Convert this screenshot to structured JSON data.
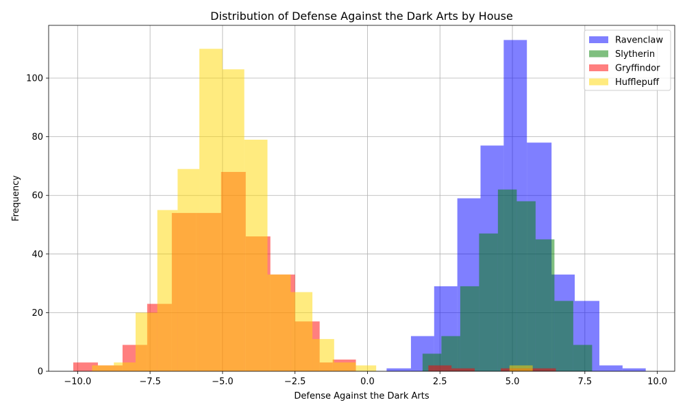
{
  "chart_data": {
    "type": "bar",
    "subtype": "overlaid-histogram",
    "title": "Distribution of Defense Against the Dark Arts by House",
    "xlabel": "Defense Against the Dark Arts",
    "ylabel": "Frequency",
    "xlim": [
      -11.0,
      10.6
    ],
    "ylim": [
      0,
      118
    ],
    "xticks": [
      -10.0,
      -7.5,
      -5.0,
      -2.5,
      0.0,
      2.5,
      5.0,
      7.5,
      10.0
    ],
    "xtick_labels": [
      "−10.0",
      "−7.5",
      "−5.0",
      "−2.5",
      "0.0",
      "2.5",
      "5.0",
      "7.5",
      "10.0"
    ],
    "yticks": [
      0,
      20,
      40,
      60,
      80,
      100
    ],
    "ytick_labels": [
      "0",
      "20",
      "40",
      "60",
      "80",
      "100"
    ],
    "grid": true,
    "legend_position": "upper right",
    "opacity": 0.5,
    "series": [
      {
        "name": "Ravenclaw",
        "color": "#0000ff",
        "bins": [
          {
            "x0": 0.66,
            "x1": 1.5,
            "count": 1
          },
          {
            "x0": 1.5,
            "x1": 2.3,
            "count": 12
          },
          {
            "x0": 2.3,
            "x1": 3.1,
            "count": 29
          },
          {
            "x0": 3.1,
            "x1": 3.9,
            "count": 59
          },
          {
            "x0": 3.9,
            "x1": 4.7,
            "count": 77
          },
          {
            "x0": 4.7,
            "x1": 5.5,
            "count": 113
          },
          {
            "x0": 5.5,
            "x1": 6.35,
            "count": 78
          },
          {
            "x0": 6.35,
            "x1": 7.15,
            "count": 33
          },
          {
            "x0": 7.15,
            "x1": 8.0,
            "count": 24
          },
          {
            "x0": 8.0,
            "x1": 8.8,
            "count": 2
          },
          {
            "x0": 8.8,
            "x1": 9.6,
            "count": 1
          }
        ]
      },
      {
        "name": "Slytherin",
        "color": "#008000",
        "bins": [
          {
            "x0": 1.9,
            "x1": 2.55,
            "count": 6
          },
          {
            "x0": 2.55,
            "x1": 3.2,
            "count": 12
          },
          {
            "x0": 3.2,
            "x1": 3.85,
            "count": 29
          },
          {
            "x0": 3.85,
            "x1": 4.5,
            "count": 47
          },
          {
            "x0": 4.5,
            "x1": 5.15,
            "count": 62
          },
          {
            "x0": 5.15,
            "x1": 5.8,
            "count": 58
          },
          {
            "x0": 5.8,
            "x1": 6.45,
            "count": 45
          },
          {
            "x0": 6.45,
            "x1": 7.1,
            "count": 24
          },
          {
            "x0": 7.1,
            "x1": 7.75,
            "count": 9
          }
        ]
      },
      {
        "name": "Gryffindor",
        "color": "#ff0000",
        "bins": [
          {
            "x0": -10.15,
            "x1": -9.3,
            "count": 3
          },
          {
            "x0": -9.3,
            "x1": -8.45,
            "count": 2
          },
          {
            "x0": -8.45,
            "x1": -7.6,
            "count": 9
          },
          {
            "x0": -7.6,
            "x1": -6.75,
            "count": 23
          },
          {
            "x0": -6.75,
            "x1": -5.9,
            "count": 54
          },
          {
            "x0": -5.9,
            "x1": -5.05,
            "count": 54
          },
          {
            "x0": -5.05,
            "x1": -4.2,
            "count": 68
          },
          {
            "x0": -4.2,
            "x1": -3.35,
            "count": 46
          },
          {
            "x0": -3.35,
            "x1": -2.5,
            "count": 33
          },
          {
            "x0": -2.5,
            "x1": -1.65,
            "count": 17
          },
          {
            "x0": -1.65,
            "x1": -1.2,
            "count": 3
          },
          {
            "x0": -1.2,
            "x1": -0.4,
            "count": 4
          },
          {
            "x0": 2.1,
            "x1": 2.9,
            "count": 2
          },
          {
            "x0": 2.9,
            "x1": 3.7,
            "count": 1
          },
          {
            "x0": 4.6,
            "x1": 5.3,
            "count": 1
          },
          {
            "x0": 5.3,
            "x1": 6.0,
            "count": 1
          },
          {
            "x0": 6.0,
            "x1": 6.5,
            "count": 1
          }
        ]
      },
      {
        "name": "Hufflepuff",
        "color": "#ffd700",
        "bins": [
          {
            "x0": -9.5,
            "x1": -8.75,
            "count": 2
          },
          {
            "x0": -8.75,
            "x1": -8.0,
            "count": 3
          },
          {
            "x0": -8.0,
            "x1": -7.25,
            "count": 20
          },
          {
            "x0": -7.25,
            "x1": -6.55,
            "count": 55
          },
          {
            "x0": -6.55,
            "x1": -5.8,
            "count": 69
          },
          {
            "x0": -5.8,
            "x1": -5.0,
            "count": 110
          },
          {
            "x0": -5.0,
            "x1": -4.25,
            "count": 103
          },
          {
            "x0": -4.25,
            "x1": -3.45,
            "count": 79
          },
          {
            "x0": -3.45,
            "x1": -2.65,
            "count": 33
          },
          {
            "x0": -2.65,
            "x1": -1.9,
            "count": 27
          },
          {
            "x0": -1.9,
            "x1": -1.15,
            "count": 11
          },
          {
            "x0": -1.15,
            "x1": -0.4,
            "count": 3
          },
          {
            "x0": -0.4,
            "x1": 0.3,
            "count": 2
          },
          {
            "x0": 4.9,
            "x1": 5.7,
            "count": 2
          }
        ]
      }
    ]
  }
}
